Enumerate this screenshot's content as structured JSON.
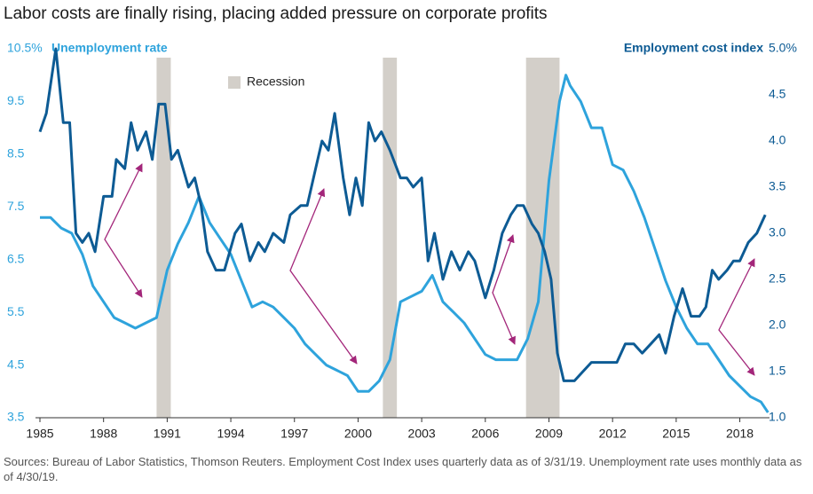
{
  "chart_data": {
    "type": "line",
    "title": "Labor costs are finally rising, placing added pressure on corporate profits",
    "y_label": "Unemployment rate",
    "y2_label": "Employment cost index",
    "source": "Sources: Bureau of Labor Statistics, Thomson Reuters. Employment Cost Index uses quarterly data as of 3/31/19. Unemployment rate uses monthly data as of 4/30/19.",
    "xlim": [
      1985,
      2019.4
    ],
    "xticks": [
      1985,
      1988,
      1991,
      1994,
      1997,
      2000,
      2003,
      2006,
      2009,
      2012,
      2015,
      2018
    ],
    "ylim": [
      3.5,
      10.5
    ],
    "yticks": [
      {
        "value": 10.5,
        "label": "10.5%"
      },
      9.5,
      8.5,
      7.5,
      6.5,
      5.5,
      4.5,
      3.5
    ],
    "y2lim": [
      1,
      5
    ],
    "y2ticks": [
      {
        "value": 5,
        "label": "5.0%"
      },
      4.5,
      {
        "value": 4,
        "label": "4.0"
      },
      3.5,
      {
        "value": 3,
        "label": "3.0"
      },
      2.5,
      {
        "value": 2,
        "label": "2.0"
      },
      1.5,
      {
        "value": 1,
        "label": "1.0"
      }
    ],
    "recession_label": "Recession",
    "recession_color": "#d3cfc9",
    "recessions": [
      [
        1990.5,
        1991.17
      ],
      [
        2001.17,
        2001.83
      ],
      [
        2007.92,
        2009.5
      ]
    ],
    "series": [
      {
        "name": "Unemployment rate",
        "color": "#2ea3dc",
        "axis": "y",
        "x": [
          1985,
          1985.5,
          1986,
          1986.5,
          1987,
          1987.5,
          1988,
          1988.5,
          1989,
          1989.5,
          1990,
          1990.5,
          1991,
          1991.5,
          1992,
          1992.5,
          1993,
          1993.5,
          1994,
          1994.5,
          1995,
          1995.5,
          1996,
          1996.5,
          1997,
          1997.5,
          1998,
          1998.5,
          1999,
          1999.5,
          2000,
          2000.5,
          2001,
          2001.5,
          2002,
          2002.5,
          2003,
          2003.5,
          2004,
          2004.5,
          2005,
          2005.5,
          2006,
          2006.5,
          2007,
          2007.5,
          2008,
          2008.5,
          2009,
          2009.5,
          2009.8,
          2010,
          2010.5,
          2011,
          2011.5,
          2012,
          2012.5,
          2013,
          2013.5,
          2014,
          2014.5,
          2015,
          2015.5,
          2016,
          2016.5,
          2017,
          2017.5,
          2018,
          2018.5,
          2019,
          2019.33
        ],
        "values": [
          7.3,
          7.3,
          7.1,
          7.0,
          6.6,
          6.0,
          5.7,
          5.4,
          5.3,
          5.2,
          5.3,
          5.4,
          6.3,
          6.8,
          7.2,
          7.7,
          7.2,
          6.9,
          6.6,
          6.1,
          5.6,
          5.7,
          5.6,
          5.4,
          5.2,
          4.9,
          4.7,
          4.5,
          4.4,
          4.3,
          4.0,
          4.0,
          4.2,
          4.6,
          5.7,
          5.8,
          5.9,
          6.2,
          5.7,
          5.5,
          5.3,
          5.0,
          4.7,
          4.6,
          4.6,
          4.6,
          5.0,
          5.7,
          8.0,
          9.5,
          10.0,
          9.8,
          9.5,
          9.0,
          9.0,
          8.3,
          8.2,
          7.8,
          7.3,
          6.7,
          6.1,
          5.6,
          5.2,
          4.9,
          4.9,
          4.6,
          4.3,
          4.1,
          3.9,
          3.8,
          3.6
        ]
      },
      {
        "name": "Employment cost index",
        "color": "#0d5b94",
        "axis": "y2",
        "x": [
          1985,
          1985.3,
          1985.75,
          1986.1,
          1986.4,
          1986.7,
          1987,
          1987.3,
          1987.6,
          1988,
          1988.4,
          1988.6,
          1989,
          1989.3,
          1989.6,
          1990,
          1990.3,
          1990.6,
          1990.9,
          1991.2,
          1991.5,
          1992,
          1992.3,
          1992.6,
          1992.9,
          1993.3,
          1993.7,
          1994.2,
          1994.5,
          1994.9,
          1995.3,
          1995.6,
          1996,
          1996.5,
          1996.8,
          1997.3,
          1997.6,
          1998,
          1998.3,
          1998.6,
          1998.9,
          1999.3,
          1999.6,
          1999.9,
          2000.2,
          2000.5,
          2000.8,
          2001.1,
          2001.5,
          2002,
          2002.3,
          2002.6,
          2003,
          2003.3,
          2003.6,
          2004,
          2004.4,
          2004.8,
          2005.2,
          2005.5,
          2006,
          2006.4,
          2006.8,
          2007.2,
          2007.5,
          2007.8,
          2008.2,
          2008.5,
          2008.8,
          2009.1,
          2009.4,
          2009.7,
          2010.2,
          2010.6,
          2011,
          2011.4,
          2011.8,
          2012.2,
          2012.6,
          2013,
          2013.4,
          2013.8,
          2014.2,
          2014.5,
          2014.9,
          2015.3,
          2015.7,
          2016.1,
          2016.4,
          2016.7,
          2017,
          2017.4,
          2017.7,
          2018,
          2018.4,
          2018.8,
          2019.2
        ],
        "values": [
          4.1,
          4.3,
          5.0,
          4.2,
          4.2,
          3.0,
          2.9,
          3.0,
          2.8,
          3.4,
          3.4,
          3.8,
          3.7,
          4.2,
          3.9,
          4.1,
          3.8,
          4.4,
          4.4,
          3.8,
          3.9,
          3.5,
          3.6,
          3.3,
          2.8,
          2.6,
          2.6,
          3.0,
          3.1,
          2.7,
          2.9,
          2.8,
          3.0,
          2.9,
          3.2,
          3.3,
          3.3,
          3.7,
          4.0,
          3.9,
          4.3,
          3.6,
          3.2,
          3.6,
          3.3,
          4.2,
          4.0,
          4.1,
          3.9,
          3.6,
          3.6,
          3.5,
          3.6,
          2.7,
          3.0,
          2.5,
          2.8,
          2.6,
          2.8,
          2.7,
          2.3,
          2.6,
          3.0,
          3.2,
          3.3,
          3.3,
          3.1,
          3.0,
          2.8,
          2.5,
          1.7,
          1.4,
          1.4,
          1.5,
          1.6,
          1.6,
          1.6,
          1.6,
          1.8,
          1.8,
          1.7,
          1.8,
          1.9,
          1.7,
          2.1,
          2.4,
          2.1,
          2.1,
          2.2,
          2.6,
          2.5,
          2.6,
          2.7,
          2.7,
          2.9,
          3.0,
          3.2
        ]
      }
    ]
  }
}
